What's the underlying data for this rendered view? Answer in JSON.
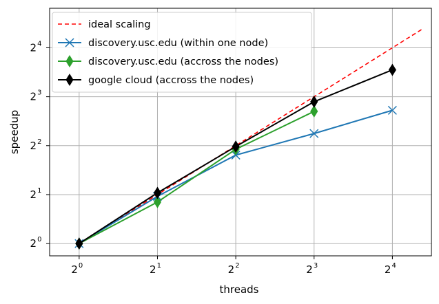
{
  "chart_data": {
    "type": "line",
    "xlabel": "threads",
    "ylabel": "speedup",
    "xscale": "log2",
    "yscale": "log2",
    "x_tick_base": "2",
    "x_tick_exponents": [
      "0",
      "1",
      "2",
      "3",
      "4"
    ],
    "y_tick_base": "2",
    "y_tick_exponents": [
      "0",
      "1",
      "2",
      "3",
      "4"
    ],
    "xlim": [
      0.77,
      22.6
    ],
    "ylim": [
      0.84,
      28.0
    ],
    "grid": true,
    "legend_position": "top-left",
    "series": [
      {
        "name": "ideal scaling",
        "color": "#ff0000",
        "style": "dashed",
        "marker": "none",
        "x": [
          1,
          21.1
        ],
        "y": [
          1,
          21.1
        ]
      },
      {
        "name": "discovery.usc.edu (within one node)",
        "color": "#1f77b4",
        "style": "solid",
        "marker": "x",
        "x": [
          1,
          2,
          4,
          8,
          16
        ],
        "y": [
          1,
          1.95,
          3.5,
          4.75,
          6.6
        ]
      },
      {
        "name": "discovery.usc.edu (accross the nodes)",
        "color": "#2ca02c",
        "style": "solid",
        "marker": "thin_diamond",
        "x": [
          1,
          2,
          4,
          8
        ],
        "y": [
          1,
          1.8,
          3.8,
          6.5
        ]
      },
      {
        "name": "google cloud (accross the nodes)",
        "color": "#000000",
        "style": "solid",
        "marker": "thin_diamond",
        "x": [
          1,
          2,
          4,
          8,
          16
        ],
        "y": [
          1,
          2.05,
          3.95,
          7.45,
          11.7
        ]
      }
    ]
  }
}
